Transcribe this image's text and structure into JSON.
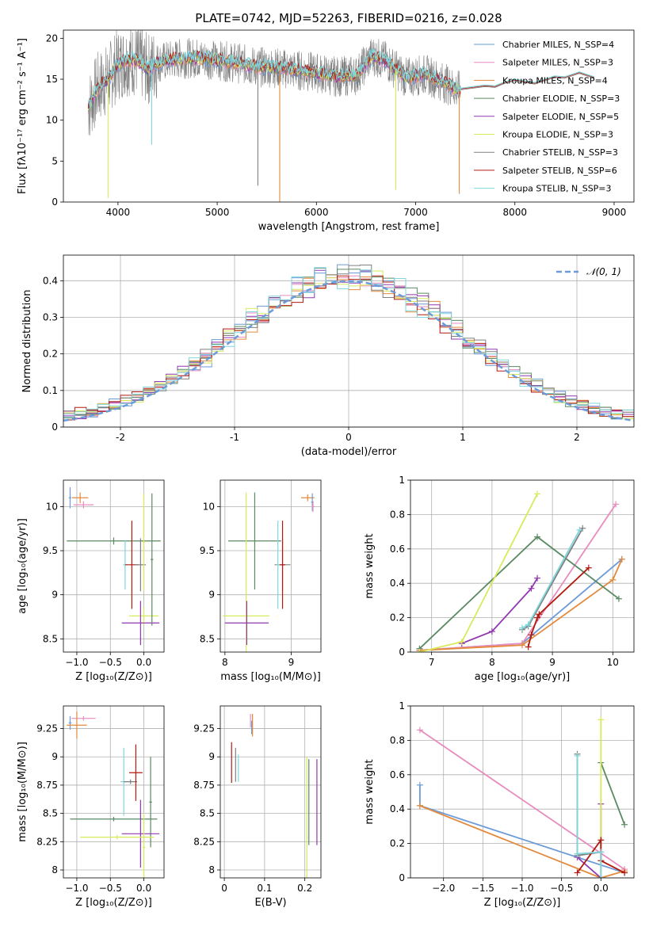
{
  "figure": {
    "title": "PLATE=0742, MJD=52263, FIBERID=0216, z=0.028"
  },
  "colors": [
    "#6b9bd8",
    "#e88cbf",
    "#e38a3c",
    "#5a8a62",
    "#9038b0",
    "#d8ea5a",
    "#808080",
    "#b01a10",
    "#7fd6dc"
  ],
  "chart_data": [
    {
      "id": "spectrum",
      "type": "line",
      "title": "PLATE=0742, MJD=52263, FIBERID=0216, z=0.028",
      "xlabel": "wavelength [Angstrom, rest frame]",
      "ylabel": "Flux [fλ10⁻¹⁷ erg cm⁻² s⁻¹ A⁻¹]",
      "xlim": [
        3450,
        9200
      ],
      "ylim": [
        0,
        21
      ],
      "xticks": [
        4000,
        5000,
        6000,
        7000,
        8000,
        9000
      ],
      "yticks": [
        0,
        5,
        10,
        15,
        20
      ],
      "grid": false,
      "legend_position": "top-right",
      "series": [
        {
          "name": "Chabrier MILES, N_SSP=4"
        },
        {
          "name": "Salpeter MILES, N_SSP=3"
        },
        {
          "name": "Kroupa MILES, N_SSP=4"
        },
        {
          "name": "Chabrier ELODIE, N_SSP=3"
        },
        {
          "name": "Salpeter ELODIE, N_SSP=5"
        },
        {
          "name": "Kroupa ELODIE, N_SSP=3"
        },
        {
          "name": "Chabrier STELIB, N_SSP=3"
        },
        {
          "name": "Salpeter STELIB, N_SSP=6"
        },
        {
          "name": "Kroupa STELIB, N_SSP=3"
        }
      ],
      "continuum": {
        "x": [
          3700,
          3800,
          3900,
          4000,
          4100,
          4200,
          4300,
          4400,
          4600,
          4800,
          5000,
          5200,
          5400,
          5600,
          5800,
          6000,
          6200,
          6400,
          6563,
          6700,
          6900,
          7100,
          7300,
          7450
        ],
        "y": [
          11.5,
          14.0,
          15.0,
          16.8,
          17.4,
          17.2,
          16.2,
          17.0,
          17.5,
          17.6,
          17.3,
          17.0,
          16.5,
          16.4,
          16.1,
          15.8,
          15.3,
          15.5,
          17.9,
          17.2,
          15.2,
          15.6,
          14.5,
          13.5
        ]
      },
      "model_tail": {
        "x": [
          7450,
          7700,
          7800,
          7900,
          8000,
          8200,
          8400,
          8500,
          8650,
          8800
        ],
        "y": [
          13.8,
          14.2,
          14.1,
          14.6,
          14.9,
          14.5,
          15.3,
          15.2,
          15.8,
          15.2
        ]
      },
      "emission_lines": [
        {
          "x": 6563,
          "y": 18.2
        }
      ],
      "sky_dips": [
        {
          "x": 3900,
          "y": 0.5
        },
        {
          "x": 4340,
          "y": 7.0
        },
        {
          "x": 5410,
          "y": 2.0
        },
        {
          "x": 5630,
          "y": 0.0
        },
        {
          "x": 6800,
          "y": 1.5
        },
        {
          "x": 7440,
          "y": 1.0
        }
      ]
    },
    {
      "id": "residuals",
      "type": "step",
      "xlabel": "(data-model)/error",
      "ylabel": "Normed distribution",
      "xlim": [
        -2.5,
        2.5
      ],
      "ylim": [
        0,
        0.47
      ],
      "xticks": [
        -2,
        -1,
        0,
        1,
        2
      ],
      "yticks": [
        0,
        0.1,
        0.2,
        0.3,
        0.4
      ],
      "grid": true,
      "legend_position": "top-right",
      "reference": {
        "name": "𝒩(0, 1)",
        "mean": 0,
        "sigma": 1,
        "style": "dashed"
      },
      "bins": {
        "start": -2.5,
        "width": 0.1
      }
    },
    {
      "id": "age-vs-Z",
      "type": "scatter",
      "xlabel": "Z [log₁₀(Z/Z⊙)]",
      "ylabel": "age  [log₁₀(age/yr)]",
      "xlim": [
        -1.2,
        0.3
      ],
      "ylim": [
        8.35,
        10.3
      ],
      "xticks": [
        -1.0,
        -0.5,
        0.0
      ],
      "yticks": [
        8.5,
        9.0,
        9.5,
        10.0
      ],
      "xtick_labels": [
        "−1.0",
        "−0.5",
        "0.0"
      ],
      "grid": true,
      "errorbars": [
        {
          "series": 0,
          "x": -1.1,
          "y": 10.1,
          "xerr": 0.02,
          "yerr": 0.12
        },
        {
          "series": 2,
          "x": -0.95,
          "y": 10.1,
          "xerr": 0.12,
          "yerr": 0.06
        },
        {
          "series": 1,
          "x": -0.9,
          "y": 10.02,
          "xerr": 0.15,
          "yerr": 0.04
        },
        {
          "series": 3,
          "x": -0.45,
          "y": 9.61,
          "xerr": 0.7,
          "yerr": 0.04
        },
        {
          "series": 8,
          "x": -0.28,
          "y": 9.34,
          "xerr": 0.03,
          "yerr": 0.28
        },
        {
          "series": 7,
          "x": -0.18,
          "y": 9.34,
          "xerr": 0.1,
          "yerr": 0.5
        },
        {
          "series": 6,
          "x": -0.05,
          "y": 9.34,
          "xerr": 0.08,
          "yerr": 0.3
        },
        {
          "series": 5,
          "x": 0.0,
          "y": 8.76,
          "xerr": 0.22,
          "yerr": 0.1
        },
        {
          "series": 4,
          "x": -0.05,
          "y": 8.68,
          "xerr": 0.28,
          "yerr": 0.25
        },
        {
          "series": 3,
          "x": 0.12,
          "y": 9.4,
          "xerr": 0.02,
          "yerr": 0.75
        },
        {
          "series": 5,
          "x": 0.0,
          "y": 9.6,
          "xerr": 0.02,
          "yerr": 0.55
        }
      ]
    },
    {
      "id": "age-vs-mass",
      "type": "scatter",
      "xlabel": "mass [log₁₀(M/M⊙)]",
      "ylabel": "",
      "xlim": [
        7.93,
        9.45
      ],
      "ylim": [
        8.35,
        10.3
      ],
      "xticks": [
        8,
        9
      ],
      "yticks": [
        8.5,
        9.0,
        9.5,
        10.0
      ],
      "grid": true,
      "errorbars": [
        {
          "series": 2,
          "x": 9.25,
          "y": 10.1,
          "xerr": 0.1,
          "yerr": 0.04
        },
        {
          "series": 0,
          "x": 9.32,
          "y": 10.05,
          "xerr": 0.02,
          "yerr": 0.1
        },
        {
          "series": 1,
          "x": 9.33,
          "y": 10.0,
          "xerr": 0.02,
          "yerr": 0.06
        },
        {
          "series": 3,
          "x": 8.45,
          "y": 9.61,
          "xerr": 0.4,
          "yerr": 0.55
        },
        {
          "series": 6,
          "x": 8.87,
          "y": 9.34,
          "xerr": 0.12,
          "yerr": 0.3
        },
        {
          "series": 8,
          "x": 8.8,
          "y": 9.34,
          "xerr": 0.02,
          "yerr": 0.5
        },
        {
          "series": 7,
          "x": 8.87,
          "y": 9.34,
          "xerr": 0.04,
          "yerr": 0.5
        },
        {
          "series": 5,
          "x": 8.32,
          "y": 8.76,
          "xerr": 0.35,
          "yerr": 1.4
        },
        {
          "series": 4,
          "x": 8.33,
          "y": 8.68,
          "xerr": 0.33,
          "yerr": 0.25
        }
      ]
    },
    {
      "id": "weight-vs-age",
      "type": "line",
      "xlabel": "age  [log₁₀(age/yr)]",
      "ylabel": "mass weight",
      "xlim": [
        6.65,
        10.35
      ],
      "ylim": [
        0,
        1.0
      ],
      "xticks": [
        7,
        8,
        9,
        10
      ],
      "yticks": [
        0.0,
        0.2,
        0.4,
        0.6,
        0.8,
        1.0
      ],
      "grid": true,
      "series": [
        {
          "x": [
            6.8,
            8.5,
            10.15
          ],
          "y": [
            0.01,
            0.05,
            0.54
          ]
        },
        {
          "x": [
            6.8,
            8.5,
            10.05
          ],
          "y": [
            0.01,
            0.05,
            0.86
          ]
        },
        {
          "x": [
            6.8,
            8.5,
            10.0,
            10.15
          ],
          "y": [
            0.01,
            0.04,
            0.42,
            0.54
          ]
        },
        {
          "x": [
            6.8,
            8.75,
            10.1
          ],
          "y": [
            0.02,
            0.67,
            0.31
          ]
        },
        {
          "x": [
            7.5,
            8.0,
            8.65,
            8.75
          ],
          "y": [
            0.05,
            0.12,
            0.37,
            0.43
          ]
        },
        {
          "x": [
            6.8,
            7.5,
            8.75
          ],
          "y": [
            0.0,
            0.06,
            0.92
          ]
        },
        {
          "x": [
            8.5,
            8.6,
            9.5
          ],
          "y": [
            0.13,
            0.15,
            0.72
          ]
        },
        {
          "x": [
            8.6,
            8.65,
            8.75,
            8.78,
            9.6
          ],
          "y": [
            0.03,
            0.1,
            0.2,
            0.22,
            0.49
          ]
        },
        {
          "x": [
            8.5,
            8.6,
            9.45
          ],
          "y": [
            0.14,
            0.16,
            0.71
          ]
        }
      ]
    },
    {
      "id": "mass-vs-Z",
      "type": "scatter",
      "xlabel": "Z [log₁₀(Z/Z⊙)]",
      "ylabel": "mass [log₁₀(M/M⊙)]",
      "xlim": [
        -1.2,
        0.3
      ],
      "ylim": [
        7.93,
        9.45
      ],
      "xticks": [
        -1.0,
        -0.5,
        0.0
      ],
      "yticks": [
        8.0,
        8.25,
        8.5,
        8.75,
        9.0,
        9.25
      ],
      "xtick_labels": [
        "−1.0",
        "−0.5",
        "0.0"
      ],
      "grid": true,
      "errorbars": [
        {
          "series": 0,
          "x": -1.1,
          "y": 9.3,
          "xerr": 0.02,
          "yerr": 0.06
        },
        {
          "series": 1,
          "x": -0.9,
          "y": 9.34,
          "xerr": 0.18,
          "yerr": 0.02
        },
        {
          "series": 2,
          "x": -1.0,
          "y": 9.28,
          "xerr": 0.15,
          "yerr": 0.12
        },
        {
          "series": 8,
          "x": -0.3,
          "y": 8.78,
          "xerr": 0.05,
          "yerr": 0.3
        },
        {
          "series": 6,
          "x": -0.2,
          "y": 8.78,
          "xerr": 0.1,
          "yerr": 0.02
        },
        {
          "series": 7,
          "x": -0.12,
          "y": 8.86,
          "xerr": 0.1,
          "yerr": 0.25
        },
        {
          "series": 3,
          "x": -0.45,
          "y": 8.45,
          "xerr": 0.65,
          "yerr": 0.02
        },
        {
          "series": 3,
          "x": 0.1,
          "y": 8.6,
          "xerr": 0.02,
          "yerr": 0.4
        },
        {
          "series": 4,
          "x": -0.05,
          "y": 8.32,
          "xerr": 0.28,
          "yerr": 0.3
        },
        {
          "series": 5,
          "x": -0.4,
          "y": 8.29,
          "xerr": 0.55,
          "yerr": 0.02
        },
        {
          "series": 5,
          "x": 0.0,
          "y": 8.2,
          "xerr": 0.02,
          "yerr": 0.3
        }
      ]
    },
    {
      "id": "mass-vs-EBV",
      "type": "scatter",
      "xlabel": "E(B-V)",
      "ylabel": "",
      "xlim": [
        -0.01,
        0.24
      ],
      "ylim": [
        7.93,
        9.45
      ],
      "xticks": [
        0.0,
        0.1,
        0.2
      ],
      "yticks": [
        8.0,
        8.25,
        8.5,
        8.75,
        9.0,
        9.25
      ],
      "grid": true,
      "errorbars": [
        {
          "series": 1,
          "x": 0.065,
          "y": 9.32,
          "xerr": 0,
          "yerr": 0.06
        },
        {
          "series": 0,
          "x": 0.068,
          "y": 9.26,
          "xerr": 0,
          "yerr": 0.06
        },
        {
          "series": 2,
          "x": 0.07,
          "y": 9.28,
          "xerr": 0,
          "yerr": 0.1
        },
        {
          "series": 7,
          "x": 0.018,
          "y": 8.95,
          "xerr": 0,
          "yerr": 0.18
        },
        {
          "series": 6,
          "x": 0.028,
          "y": 8.93,
          "xerr": 0,
          "yerr": 0.15
        },
        {
          "series": 8,
          "x": 0.035,
          "y": 8.9,
          "xerr": 0,
          "yerr": 0.12
        },
        {
          "series": 5,
          "x": 0.205,
          "y": 8.45,
          "xerr": 0,
          "yerr": 0.55
        },
        {
          "series": 3,
          "x": 0.21,
          "y": 8.6,
          "xerr": 0,
          "yerr": 0.38
        },
        {
          "series": 4,
          "x": 0.23,
          "y": 8.6,
          "xerr": 0,
          "yerr": 0.38
        }
      ]
    },
    {
      "id": "weight-vs-Z",
      "type": "line",
      "xlabel": "Z [log₁₀(Z/Z⊙)]",
      "ylabel": "mass weight",
      "xlim": [
        -2.42,
        0.42
      ],
      "ylim": [
        0,
        1.0
      ],
      "xticks": [
        -2.0,
        -1.5,
        -1.0,
        -0.5,
        0.0
      ],
      "xtick_labels": [
        "−2.0",
        "−1.5",
        "−1.0",
        "−0.5",
        "0.0"
      ],
      "yticks": [
        0.0,
        0.2,
        0.4,
        0.6,
        0.8,
        1.0
      ],
      "grid": true,
      "series": [
        {
          "x": [
            -2.3,
            -2.3,
            0.3
          ],
          "y": [
            0.54,
            0.42,
            0.03
          ]
        },
        {
          "x": [
            -2.3,
            0.3
          ],
          "y": [
            0.86,
            0.05
          ]
        },
        {
          "x": [
            -2.3,
            0.0,
            0.3
          ],
          "y": [
            0.42,
            0.0,
            0.04
          ]
        },
        {
          "x": [
            0.0,
            0.3
          ],
          "y": [
            0.67,
            0.31
          ]
        },
        {
          "x": [
            -0.3,
            0.0,
            0.0
          ],
          "y": [
            0.12,
            0.0,
            0.43
          ]
        },
        {
          "x": [
            0.0,
            0.0
          ],
          "y": [
            0.92,
            0.0
          ]
        },
        {
          "x": [
            -0.3,
            -0.3,
            0.0
          ],
          "y": [
            0.72,
            0.13,
            0.15
          ]
        },
        {
          "x": [
            -0.3,
            0.0,
            0.0,
            0.3
          ],
          "y": [
            0.03,
            0.22,
            0.1,
            0.03
          ]
        },
        {
          "x": [
            -0.3,
            -0.3,
            0.0,
            0.0
          ],
          "y": [
            0.71,
            0.14,
            0.15,
            0.0
          ]
        }
      ]
    }
  ]
}
